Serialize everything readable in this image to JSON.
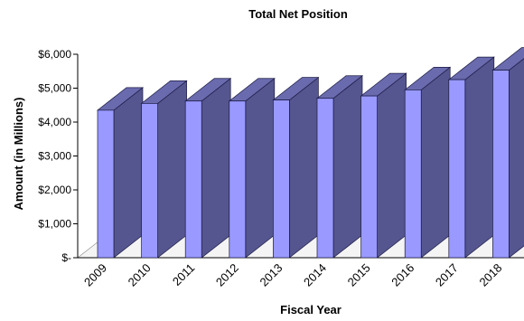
{
  "chart_data": {
    "type": "bar",
    "title": "Total Net Position",
    "xlabel": "Fiscal Year",
    "ylabel": "Amount (in Millions)",
    "categories": [
      "2009",
      "2010",
      "2011",
      "2012",
      "2013",
      "2014",
      "2015",
      "2016",
      "2017",
      "2018"
    ],
    "values": [
      4350,
      4550,
      4620,
      4620,
      4650,
      4700,
      4770,
      4950,
      5250,
      5530
    ],
    "ylim": [
      0,
      6000
    ],
    "yticks": [
      0,
      1000,
      2000,
      3000,
      4000,
      5000,
      6000
    ],
    "ytick_labels": [
      "$-",
      "$1,000",
      "$2,000",
      "$3,000",
      "$4,000",
      "$5,000",
      "$6,000"
    ],
    "grid": false,
    "legend": "none",
    "style": "3d-column",
    "colors": {
      "front": "#9999ff",
      "side": "#55558f",
      "top": "#6a6aae",
      "outline": "#1a1a44"
    }
  }
}
